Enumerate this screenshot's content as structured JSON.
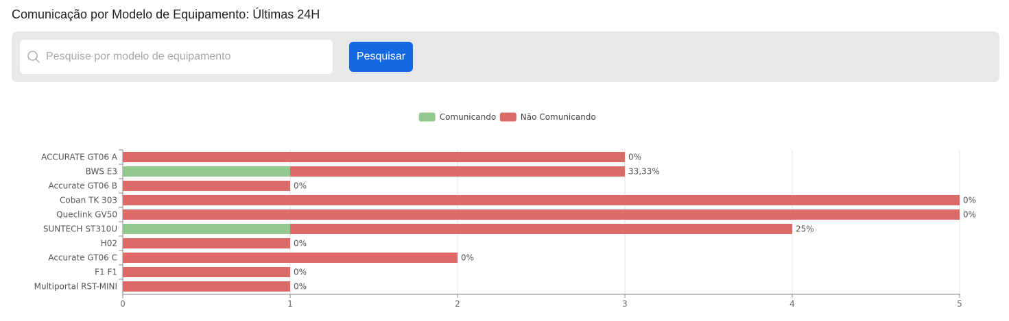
{
  "page": {
    "title": "Comunicação por Modelo de Equipamento: Últimas 24H"
  },
  "search": {
    "placeholder": "Pesquise por modelo de equipamento",
    "value": "",
    "button_label": "Pesquisar",
    "icon": "search-icon"
  },
  "colors": {
    "communicating": "#93c98f",
    "not_communicating": "#dc6b67",
    "button": "#1468e0",
    "panel": "#e8e8e8"
  },
  "chart_data": {
    "type": "bar",
    "orientation": "horizontal",
    "stacked": true,
    "title": "",
    "xlabel": "",
    "ylabel": "",
    "legend_position": "top-center",
    "grid": true,
    "xlim": [
      0,
      5
    ],
    "xticks": [
      "0",
      "1",
      "2",
      "3",
      "4",
      "5"
    ],
    "categories": [
      "ACCURATE GT06 A",
      "BWS E3",
      "Accurate GT06 B",
      "Coban TK 303",
      "Queclink GV50",
      "SUNTECH ST310U",
      "H02",
      "Accurate GT06 C",
      "F1 F1",
      "Multiportal RST-MINI"
    ],
    "series": [
      {
        "name": "Comunicando",
        "color": "#93c98f",
        "values": [
          0,
          1,
          0,
          0,
          0,
          1,
          0,
          0,
          0,
          0
        ]
      },
      {
        "name": "Não Comunicando",
        "color": "#dc6b67",
        "values": [
          3,
          2,
          1,
          5,
          5,
          3,
          1,
          2,
          1,
          1
        ]
      }
    ],
    "data_labels": [
      "0%",
      "33,33%",
      "0%",
      "0%",
      "0%",
      "25%",
      "0%",
      "0%",
      "0%",
      "0%"
    ]
  }
}
